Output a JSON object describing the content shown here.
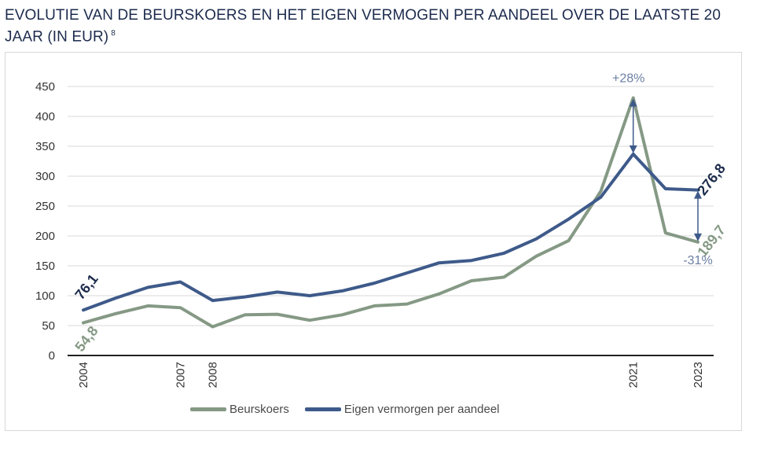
{
  "header": {
    "title": "EVOLUTIE VAN DE BEURSKOERS EN HET EIGEN VERMOGEN PER AANDEEL OVER DE LAATSTE 20 JAAR (IN EUR)",
    "footnote": "8"
  },
  "colors": {
    "beurskoers": "#859985",
    "eigen_vermogen": "#3e5a8a",
    "grid": "#d9d9d9",
    "axis": "#222222",
    "label_dark": "#1c2b4d",
    "label_green": "#859985",
    "annotation": "#6b7fa3"
  },
  "legend": {
    "items": [
      {
        "label": "Beurskoers",
        "color": "#859985"
      },
      {
        "label": "Eigen vermorgen per aandeel",
        "color": "#3e5a8a"
      }
    ]
  },
  "chart_data": {
    "type": "line",
    "title": "EVOLUTIE VAN DE BEURSKOERS EN HET EIGEN VERMOGEN PER AANDEEL OVER DE LAATSTE 20 JAAR (IN EUR)",
    "xlabel": "",
    "ylabel": "",
    "ylim": [
      0,
      450
    ],
    "yticks": [
      0,
      50,
      100,
      150,
      200,
      250,
      300,
      350,
      400,
      450
    ],
    "grid": true,
    "x": [
      2004,
      2005,
      2006,
      2007,
      2008,
      2009,
      2010,
      2011,
      2012,
      2013,
      2014,
      2015,
      2016,
      2017,
      2018,
      2019,
      2020,
      2021,
      2022,
      2023
    ],
    "x_tick_labels": [
      "2004",
      "2007",
      "2008",
      "2021",
      "2023"
    ],
    "series": [
      {
        "name": "Beurskoers",
        "values": [
          54.8,
          70,
          83,
          80,
          48,
          68,
          69,
          59,
          68,
          83,
          86,
          103,
          125,
          131,
          166,
          192,
          275,
          431,
          205,
          189.7
        ]
      },
      {
        "name": "Eigen vermorgen per aandeel",
        "values": [
          76.1,
          96,
          114,
          123,
          92,
          98,
          106,
          100,
          108,
          121,
          138,
          155,
          159,
          171,
          195,
          228,
          265,
          337,
          279,
          276.8
        ]
      }
    ],
    "data_labels": [
      {
        "series": "Eigen vermorgen per aandeel",
        "x": 2004,
        "text": "76,1"
      },
      {
        "series": "Beurskoers",
        "x": 2004,
        "text": "54,8"
      },
      {
        "series": "Eigen vermorgen per aandeel",
        "x": 2023,
        "text": "276,8"
      },
      {
        "series": "Beurskoers",
        "x": 2023,
        "text": "189,7"
      }
    ],
    "annotations": [
      {
        "x": 2021,
        "text": "+28%",
        "from": 337,
        "to": 431
      },
      {
        "x": 2023,
        "text": "-31%",
        "from": 189.7,
        "to": 276.8
      }
    ],
    "legend_position": "bottom"
  }
}
